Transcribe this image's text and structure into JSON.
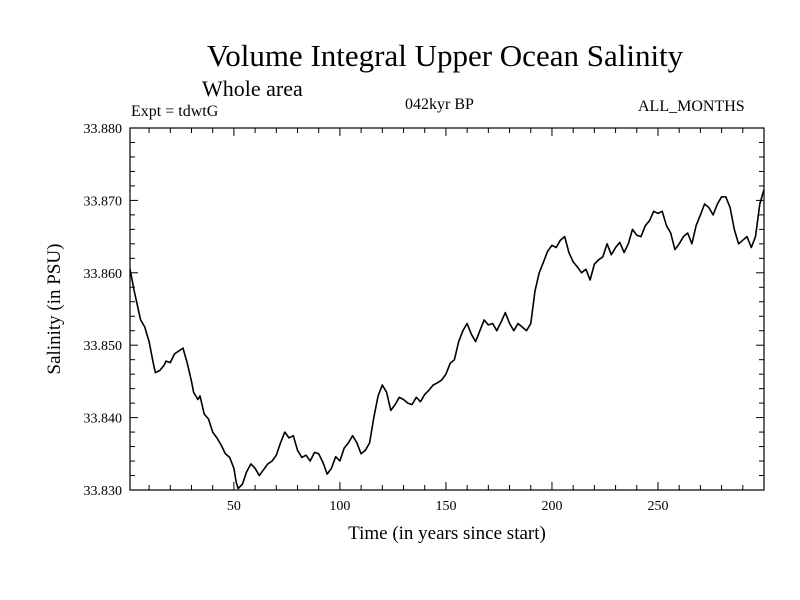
{
  "header": {
    "title": "Volume Integral Upper Ocean Salinity",
    "subtitle": "Whole area",
    "expt": "Expt = tdwtG",
    "period": "042kyr BP",
    "months": "ALL_MONTHS"
  },
  "chart_data": {
    "type": "line",
    "title": "Volume Integral Upper Ocean Salinity",
    "xlabel": "Time (in years since start)",
    "ylabel": "Salinity (in PSU)",
    "xlim": [
      1,
      300
    ],
    "ylim": [
      33.83,
      33.88
    ],
    "x_ticks": [
      50,
      100,
      150,
      200,
      250
    ],
    "y_ticks": [
      "33.830",
      "33.840",
      "33.850",
      "33.860",
      "33.870",
      "33.880"
    ],
    "grid": false,
    "line_color": "#000000",
    "series": [
      {
        "name": "Salinity",
        "points": [
          [
            1,
            33.8605
          ],
          [
            3,
            33.8575
          ],
          [
            6,
            33.8535
          ],
          [
            8,
            33.8525
          ],
          [
            10,
            33.8505
          ],
          [
            12,
            33.8475
          ],
          [
            13,
            33.8462
          ],
          [
            15,
            33.8465
          ],
          [
            17,
            33.8472
          ],
          [
            18,
            33.8478
          ],
          [
            20,
            33.8476
          ],
          [
            22,
            33.8488
          ],
          [
            24,
            33.8492
          ],
          [
            26,
            33.8496
          ],
          [
            28,
            33.8475
          ],
          [
            30,
            33.845
          ],
          [
            31,
            33.8435
          ],
          [
            33,
            33.8425
          ],
          [
            34,
            33.843
          ],
          [
            36,
            33.8405
          ],
          [
            38,
            33.8398
          ],
          [
            40,
            33.838
          ],
          [
            42,
            33.8372
          ],
          [
            44,
            33.8362
          ],
          [
            46,
            33.835
          ],
          [
            48,
            33.8345
          ],
          [
            50,
            33.833
          ],
          [
            51,
            33.8312
          ],
          [
            52,
            33.8302
          ],
          [
            54,
            33.8308
          ],
          [
            56,
            33.8325
          ],
          [
            58,
            33.8336
          ],
          [
            60,
            33.833
          ],
          [
            62,
            33.832
          ],
          [
            64,
            33.8328
          ],
          [
            66,
            33.8336
          ],
          [
            68,
            33.834
          ],
          [
            70,
            33.8348
          ],
          [
            72,
            33.8365
          ],
          [
            74,
            33.838
          ],
          [
            76,
            33.8372
          ],
          [
            78,
            33.8375
          ],
          [
            80,
            33.8355
          ],
          [
            82,
            33.8345
          ],
          [
            84,
            33.8348
          ],
          [
            86,
            33.834
          ],
          [
            88,
            33.8352
          ],
          [
            90,
            33.835
          ],
          [
            92,
            33.8338
          ],
          [
            94,
            33.8322
          ],
          [
            96,
            33.833
          ],
          [
            98,
            33.8346
          ],
          [
            100,
            33.834
          ],
          [
            102,
            33.8358
          ],
          [
            104,
            33.8365
          ],
          [
            106,
            33.8375
          ],
          [
            108,
            33.8365
          ],
          [
            110,
            33.835
          ],
          [
            112,
            33.8355
          ],
          [
            114,
            33.8365
          ],
          [
            116,
            33.84
          ],
          [
            118,
            33.843
          ],
          [
            120,
            33.8445
          ],
          [
            122,
            33.8435
          ],
          [
            124,
            33.841
          ],
          [
            126,
            33.8418
          ],
          [
            128,
            33.8428
          ],
          [
            130,
            33.8425
          ],
          [
            132,
            33.842
          ],
          [
            134,
            33.8418
          ],
          [
            136,
            33.8428
          ],
          [
            138,
            33.8422
          ],
          [
            140,
            33.8432
          ],
          [
            142,
            33.8438
          ],
          [
            144,
            33.8445
          ],
          [
            146,
            33.8448
          ],
          [
            148,
            33.8452
          ],
          [
            150,
            33.846
          ],
          [
            152,
            33.8475
          ],
          [
            154,
            33.848
          ],
          [
            156,
            33.8505
          ],
          [
            158,
            33.852
          ],
          [
            160,
            33.853
          ],
          [
            162,
            33.8515
          ],
          [
            164,
            33.8505
          ],
          [
            166,
            33.852
          ],
          [
            168,
            33.8535
          ],
          [
            170,
            33.8528
          ],
          [
            172,
            33.853
          ],
          [
            174,
            33.852
          ],
          [
            176,
            33.8532
          ],
          [
            178,
            33.8545
          ],
          [
            180,
            33.853
          ],
          [
            182,
            33.852
          ],
          [
            184,
            33.853
          ],
          [
            186,
            33.8525
          ],
          [
            188,
            33.852
          ],
          [
            190,
            33.853
          ],
          [
            192,
            33.8575
          ],
          [
            194,
            33.86
          ],
          [
            196,
            33.8615
          ],
          [
            198,
            33.863
          ],
          [
            200,
            33.8638
          ],
          [
            202,
            33.8635
          ],
          [
            204,
            33.8645
          ],
          [
            206,
            33.865
          ],
          [
            208,
            33.8628
          ],
          [
            210,
            33.8615
          ],
          [
            212,
            33.8608
          ],
          [
            214,
            33.86
          ],
          [
            216,
            33.8605
          ],
          [
            218,
            33.859
          ],
          [
            220,
            33.8612
          ],
          [
            222,
            33.8618
          ],
          [
            224,
            33.8622
          ],
          [
            226,
            33.864
          ],
          [
            228,
            33.8625
          ],
          [
            230,
            33.8635
          ],
          [
            232,
            33.8642
          ],
          [
            234,
            33.8628
          ],
          [
            236,
            33.864
          ],
          [
            238,
            33.866
          ],
          [
            240,
            33.8652
          ],
          [
            242,
            33.865
          ],
          [
            244,
            33.8665
          ],
          [
            246,
            33.8672
          ],
          [
            248,
            33.8685
          ],
          [
            250,
            33.8682
          ],
          [
            252,
            33.8685
          ],
          [
            254,
            33.8665
          ],
          [
            256,
            33.8655
          ],
          [
            258,
            33.8632
          ],
          [
            260,
            33.864
          ],
          [
            262,
            33.865
          ],
          [
            264,
            33.8655
          ],
          [
            266,
            33.864
          ],
          [
            268,
            33.8665
          ],
          [
            270,
            33.868
          ],
          [
            272,
            33.8695
          ],
          [
            274,
            33.869
          ],
          [
            276,
            33.868
          ],
          [
            278,
            33.8695
          ],
          [
            280,
            33.8705
          ],
          [
            282,
            33.8705
          ],
          [
            284,
            33.869
          ],
          [
            286,
            33.866
          ],
          [
            288,
            33.864
          ],
          [
            290,
            33.8645
          ],
          [
            292,
            33.865
          ],
          [
            294,
            33.8635
          ],
          [
            296,
            33.865
          ],
          [
            298,
            33.8695
          ],
          [
            300,
            33.8715
          ]
        ]
      }
    ]
  }
}
